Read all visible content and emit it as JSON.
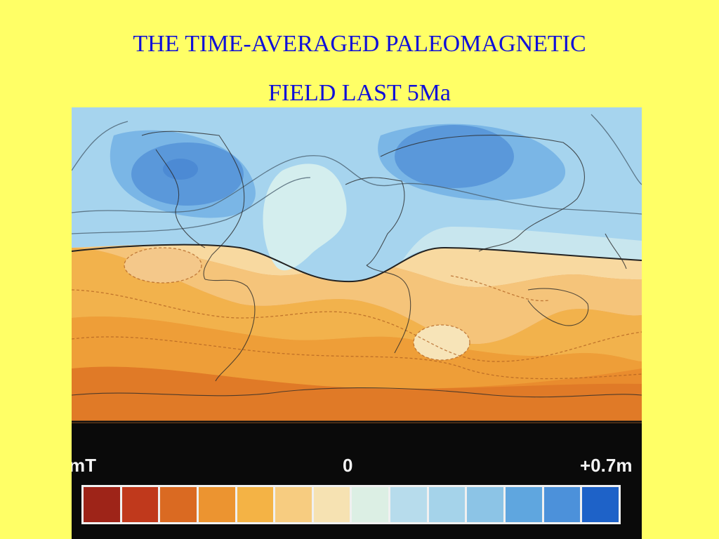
{
  "title": {
    "line1": "THE TIME-AVERAGED PALEOMAGNETIC",
    "line2": "FIELD LAST 5Ma"
  },
  "legend": {
    "left_label": "mT",
    "center_label": "0",
    "right_label": "+0.7m",
    "swatches": [
      "#9E2418",
      "#C0391C",
      "#DA6A22",
      "#EC9430",
      "#F4B345",
      "#F7CC80",
      "#F6E2B2",
      "#DCEFE4",
      "#B7DCEC",
      "#A5D3EA",
      "#8CC4E6",
      "#5FA6DF",
      "#4C91DA",
      "#1E62C8"
    ]
  },
  "colors": {
    "background": "#FFFF66",
    "title": "#1010D8",
    "ocean_south_dark": "#E0802A",
    "ocean_south": "#EE9E3A",
    "ocean_south_light": "#F5C478",
    "north_light": "#D6EEF0",
    "north_mid": "#A8D6EE",
    "north_dark": "#7AB6E6",
    "pole_dark": "#5A98DA"
  }
}
